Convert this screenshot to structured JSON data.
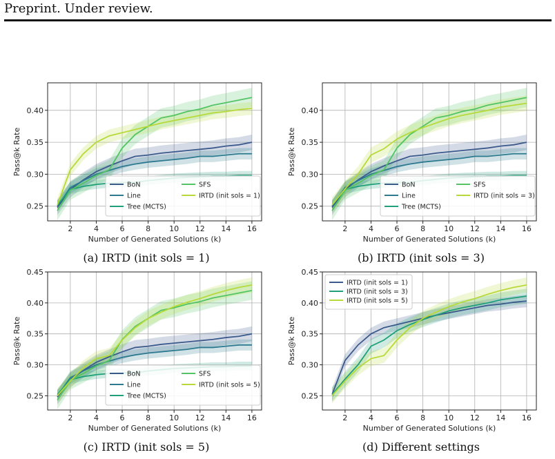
{
  "header": {
    "text": "Preprint. Under review."
  },
  "captions": [
    "(a) IRTD (init sols = 1)",
    "(b) IRTD (init sols = 3)",
    "(c) IRTD (init sols = 5)",
    "(d) Different settings"
  ],
  "chart_data": [
    {
      "type": "line",
      "xlabel": "Number of Generated Solutions (k)",
      "ylabel": "Pass@k Rate",
      "xlim": [
        0.25,
        16.75
      ],
      "ylim": [
        0.227,
        0.443
      ],
      "xticks": [
        2,
        4,
        6,
        8,
        10,
        12,
        14,
        16
      ],
      "yticks": [
        0.25,
        0.3,
        0.35,
        0.4
      ],
      "grid": true,
      "legend_position": "lower-right",
      "legend_columns": 2,
      "x": [
        1,
        2,
        3,
        4,
        5,
        6,
        7,
        8,
        9,
        10,
        11,
        12,
        13,
        14,
        15,
        16
      ],
      "series": [
        {
          "name": "BoN",
          "color": "#3b5a8c",
          "values": [
            0.248,
            0.276,
            0.291,
            0.304,
            0.313,
            0.321,
            0.328,
            0.33,
            0.333,
            0.335,
            0.337,
            0.339,
            0.341,
            0.344,
            0.346,
            0.35
          ],
          "band": 0.012
        },
        {
          "name": "Line",
          "color": "#2b7a8f",
          "values": [
            0.25,
            0.279,
            0.29,
            0.3,
            0.306,
            0.312,
            0.316,
            0.319,
            0.321,
            0.323,
            0.325,
            0.328,
            0.328,
            0.33,
            0.332,
            0.332
          ],
          "band": 0.009
        },
        {
          "name": "Tree (MCTS)",
          "color": "#1fa07a",
          "values": [
            0.252,
            0.276,
            0.281,
            0.284,
            0.286,
            0.287,
            0.287,
            0.29,
            0.292,
            0.294,
            0.295,
            0.296,
            0.297,
            0.297,
            0.298,
            0.298
          ],
          "band": 0.007
        },
        {
          "name": "SFS",
          "color": "#52c463",
          "values": [
            0.243,
            0.275,
            0.286,
            0.298,
            0.307,
            0.341,
            0.362,
            0.375,
            0.388,
            0.392,
            0.398,
            0.402,
            0.408,
            0.412,
            0.416,
            0.42
          ],
          "band": 0.015
        },
        {
          "name": "IRTD (init sols = 1)",
          "color": "#b7d93a",
          "values": [
            0.252,
            0.307,
            0.332,
            0.35,
            0.36,
            0.365,
            0.37,
            0.375,
            0.38,
            0.384,
            0.388,
            0.392,
            0.396,
            0.398,
            0.401,
            0.403
          ],
          "band": 0.01
        }
      ]
    },
    {
      "type": "line",
      "xlabel": "Number of Generated Solutions (k)",
      "ylabel": "Pass@k Rate",
      "xlim": [
        0.25,
        16.75
      ],
      "ylim": [
        0.227,
        0.443
      ],
      "xticks": [
        2,
        4,
        6,
        8,
        10,
        12,
        14,
        16
      ],
      "yticks": [
        0.25,
        0.3,
        0.35,
        0.4
      ],
      "grid": true,
      "legend_position": "lower-right",
      "legend_columns": 2,
      "x": [
        1,
        2,
        3,
        4,
        5,
        6,
        7,
        8,
        9,
        10,
        11,
        12,
        13,
        14,
        15,
        16
      ],
      "series": [
        {
          "name": "BoN",
          "color": "#3b5a8c",
          "values": [
            0.248,
            0.276,
            0.291,
            0.304,
            0.313,
            0.321,
            0.328,
            0.33,
            0.333,
            0.335,
            0.337,
            0.339,
            0.341,
            0.344,
            0.346,
            0.35
          ],
          "band": 0.012
        },
        {
          "name": "Line",
          "color": "#2b7a8f",
          "values": [
            0.25,
            0.279,
            0.29,
            0.3,
            0.306,
            0.312,
            0.316,
            0.319,
            0.321,
            0.323,
            0.325,
            0.328,
            0.328,
            0.33,
            0.332,
            0.332
          ],
          "band": 0.009
        },
        {
          "name": "Tree (MCTS)",
          "color": "#1fa07a",
          "values": [
            0.252,
            0.276,
            0.281,
            0.284,
            0.286,
            0.287,
            0.287,
            0.29,
            0.292,
            0.294,
            0.295,
            0.296,
            0.297,
            0.297,
            0.298,
            0.298
          ],
          "band": 0.007
        },
        {
          "name": "SFS",
          "color": "#52c463",
          "values": [
            0.243,
            0.275,
            0.286,
            0.298,
            0.307,
            0.341,
            0.362,
            0.375,
            0.388,
            0.392,
            0.398,
            0.402,
            0.408,
            0.412,
            0.416,
            0.42
          ],
          "band": 0.015
        },
        {
          "name": "IRTD (init sols = 3)",
          "color": "#b7d93a",
          "values": [
            0.252,
            0.277,
            0.3,
            0.33,
            0.34,
            0.355,
            0.365,
            0.373,
            0.38,
            0.387,
            0.392,
            0.396,
            0.4,
            0.405,
            0.408,
            0.411
          ],
          "band": 0.012
        }
      ]
    },
    {
      "type": "line",
      "xlabel": "Number of Generated Solutions (k)",
      "ylabel": "Pass@k Rate",
      "xlim": [
        0.25,
        16.75
      ],
      "ylim": [
        0.227,
        0.45
      ],
      "xticks": [
        2,
        4,
        6,
        8,
        10,
        12,
        14,
        16
      ],
      "yticks": [
        0.25,
        0.3,
        0.35,
        0.4,
        0.45
      ],
      "grid": true,
      "legend_position": "lower-right",
      "legend_columns": 2,
      "x": [
        1,
        2,
        3,
        4,
        5,
        6,
        7,
        8,
        9,
        10,
        11,
        12,
        13,
        14,
        15,
        16
      ],
      "series": [
        {
          "name": "BoN",
          "color": "#3b5a8c",
          "values": [
            0.248,
            0.276,
            0.291,
            0.304,
            0.313,
            0.321,
            0.328,
            0.33,
            0.333,
            0.335,
            0.337,
            0.339,
            0.341,
            0.344,
            0.346,
            0.35
          ],
          "band": 0.012
        },
        {
          "name": "Line",
          "color": "#2b7a8f",
          "values": [
            0.25,
            0.279,
            0.29,
            0.3,
            0.306,
            0.312,
            0.316,
            0.319,
            0.321,
            0.323,
            0.325,
            0.328,
            0.328,
            0.33,
            0.332,
            0.332
          ],
          "band": 0.009
        },
        {
          "name": "Tree (MCTS)",
          "color": "#1fa07a",
          "values": [
            0.252,
            0.276,
            0.281,
            0.284,
            0.286,
            0.287,
            0.287,
            0.29,
            0.292,
            0.294,
            0.295,
            0.296,
            0.297,
            0.297,
            0.298,
            0.298
          ],
          "band": 0.007
        },
        {
          "name": "SFS",
          "color": "#52c463",
          "values": [
            0.243,
            0.275,
            0.286,
            0.298,
            0.307,
            0.341,
            0.362,
            0.375,
            0.388,
            0.392,
            0.398,
            0.402,
            0.408,
            0.412,
            0.416,
            0.42
          ],
          "band": 0.015
        },
        {
          "name": "IRTD (init sols = 5)",
          "color": "#b7d93a",
          "values": [
            0.25,
            0.274,
            0.295,
            0.31,
            0.315,
            0.34,
            0.36,
            0.375,
            0.385,
            0.394,
            0.401,
            0.407,
            0.414,
            0.42,
            0.425,
            0.429
          ],
          "band": 0.012
        }
      ]
    },
    {
      "type": "line",
      "xlabel": "Number of Generated Solutions (k)",
      "ylabel": "Pass@k Rate",
      "xlim": [
        0.25,
        16.75
      ],
      "ylim": [
        0.227,
        0.45
      ],
      "xticks": [
        2,
        4,
        6,
        8,
        10,
        12,
        14,
        16
      ],
      "yticks": [
        0.25,
        0.3,
        0.35,
        0.4,
        0.45
      ],
      "grid": true,
      "legend_position": "upper-left",
      "legend_columns": 1,
      "x": [
        1,
        2,
        3,
        4,
        5,
        6,
        7,
        8,
        9,
        10,
        11,
        12,
        13,
        14,
        15,
        16
      ],
      "series": [
        {
          "name": "IRTD (init sols = 1)",
          "color": "#3b5a8c",
          "values": [
            0.252,
            0.307,
            0.332,
            0.35,
            0.36,
            0.365,
            0.37,
            0.375,
            0.38,
            0.384,
            0.388,
            0.392,
            0.396,
            0.398,
            0.401,
            0.403
          ],
          "band": 0.01
        },
        {
          "name": "IRTD (init sols = 3)",
          "color": "#1fa07a",
          "values": [
            0.252,
            0.277,
            0.3,
            0.33,
            0.34,
            0.355,
            0.365,
            0.373,
            0.38,
            0.387,
            0.392,
            0.396,
            0.4,
            0.405,
            0.408,
            0.411
          ],
          "band": 0.012
        },
        {
          "name": "IRTD (init sols = 5)",
          "color": "#b7d93a",
          "values": [
            0.25,
            0.274,
            0.295,
            0.31,
            0.315,
            0.34,
            0.36,
            0.375,
            0.385,
            0.394,
            0.401,
            0.407,
            0.414,
            0.42,
            0.425,
            0.429
          ],
          "band": 0.012
        }
      ]
    }
  ]
}
